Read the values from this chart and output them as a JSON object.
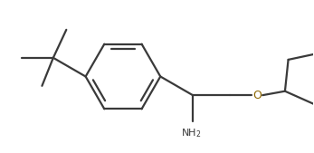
{
  "bg_color": "#ffffff",
  "line_color": "#3a3a3a",
  "text_color": "#3a3a3a",
  "o_color": "#8B6500",
  "n_color": "#3a3a3a",
  "line_width": 1.6,
  "fig_width": 3.47,
  "fig_height": 1.69,
  "dpi": 100,
  "NH2_label": "NH$_2$",
  "O_label": "O"
}
